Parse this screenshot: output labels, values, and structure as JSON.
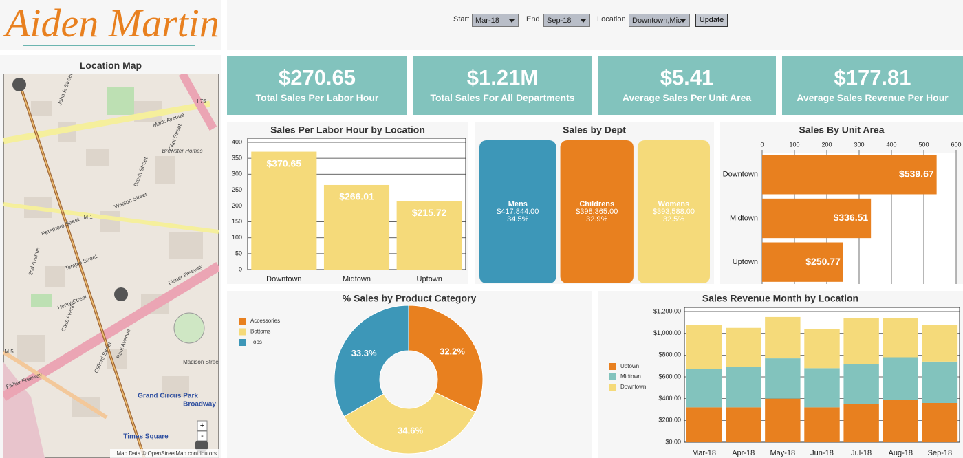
{
  "header": {
    "title": "Aiden Martin"
  },
  "filters": {
    "start_label": "Start",
    "start_value": "Mar-18",
    "end_label": "End",
    "end_value": "Sep-18",
    "location_label": "Location",
    "location_value": "Downtown,Mic",
    "button": "Update"
  },
  "kpis": [
    {
      "value": "$270.65",
      "label": "Total Sales Per Labor Hour"
    },
    {
      "value": "$1.21M",
      "label": "Total Sales For All Departments"
    },
    {
      "value": "$5.41",
      "label": "Average Sales Per Unit Area"
    },
    {
      "value": "$177.81",
      "label": "Average Sales Revenue Per Hour"
    }
  ],
  "map": {
    "title": "Location Map",
    "labels": [
      "Mack Avenue",
      "Fisher Freeway",
      "Grand Circus Park",
      "Times Square",
      "Broadway",
      "Peterboro Street",
      "Park Avenue",
      "Clifford Street",
      "Henry Street",
      "Cass Avenue",
      "2nd Avenue",
      "Brush Street",
      "Madison Street",
      "John R Street",
      "Brewster Homes",
      "I 75",
      "M 1",
      "M 5",
      "Fisher Freeway",
      "Elliot Street",
      "Watson Street",
      "Temple Street"
    ],
    "zoom_in": "+",
    "zoom_out": "-",
    "attribution": "Map Data © OpenStreetMap contributors"
  },
  "chart_data": [
    {
      "type": "bar",
      "title": "Sales Per Labor Hour by Location",
      "categories": [
        "Downtown",
        "Midtown",
        "Uptown"
      ],
      "values": [
        370.65,
        266.01,
        215.72
      ],
      "value_labels": [
        "$370.65",
        "$266.01",
        "$215.72"
      ],
      "color": "#f5da7a",
      "ylim": [
        0,
        400
      ],
      "yticks": [
        0,
        50,
        100,
        150,
        200,
        250,
        300,
        350,
        400
      ],
      "grid": true
    },
    {
      "type": "treemap",
      "title": "Sales by Dept",
      "categories": [
        "Mens",
        "Childrens",
        "Womens"
      ],
      "values": [
        417844,
        398365,
        393588
      ],
      "value_labels": [
        "$417,844.00",
        "$398,365.00",
        "$393,588.00"
      ],
      "percent_labels": [
        "34.5%",
        "32.9%",
        "32.5%"
      ],
      "colors": [
        "#3d97b8",
        "#e8801f",
        "#f5da7a"
      ]
    },
    {
      "type": "hbar",
      "title": "Sales By Unit Area",
      "categories": [
        "Downtown",
        "Midtown",
        "Uptown"
      ],
      "values": [
        539.67,
        336.51,
        250.77
      ],
      "value_labels": [
        "$539.67",
        "$336.51",
        "$250.77"
      ],
      "color": "#e8801f",
      "xlim": [
        0,
        600
      ],
      "xticks": [
        0,
        100,
        200,
        300,
        400,
        500,
        600
      ],
      "grid": true
    },
    {
      "type": "pie",
      "title": "% Sales by Product Category",
      "donut": true,
      "categories": [
        "Accessories",
        "Bottoms",
        "Tops"
      ],
      "values": [
        32.2,
        34.6,
        33.3
      ],
      "value_labels": [
        "32.2%",
        "34.6%",
        "33.3%"
      ],
      "colors": [
        "#e8801f",
        "#f5da7a",
        "#3d97b8"
      ],
      "legend": "left"
    },
    {
      "type": "stacked_bar",
      "title": "Sales Revenue Month by Location",
      "categories": [
        "Mar-18",
        "Apr-18",
        "May-18",
        "Jun-18",
        "Jul-18",
        "Aug-18",
        "Sep-18"
      ],
      "series": [
        {
          "name": "Uptown",
          "color": "#e8801f",
          "values": [
            320,
            320,
            400,
            320,
            350,
            390,
            360
          ]
        },
        {
          "name": "Midtown",
          "color": "#82c3bd",
          "values": [
            350,
            370,
            370,
            360,
            370,
            390,
            380
          ]
        },
        {
          "name": "Downtown",
          "color": "#f5da7a",
          "values": [
            410,
            360,
            380,
            360,
            420,
            360,
            340
          ]
        }
      ],
      "ylim": [
        0,
        1200
      ],
      "yticks": [
        {
          "value": 0,
          "label": "$0.00"
        },
        {
          "value": 200,
          "label": "$200.00"
        },
        {
          "value": 400,
          "label": "$400.00"
        },
        {
          "value": 600,
          "label": "$600.00"
        },
        {
          "value": 800,
          "label": "$800.00"
        },
        {
          "value": 1000,
          "label": "$1,000.00"
        },
        {
          "value": 1200,
          "label": "$1,200.00"
        }
      ],
      "grid": true,
      "legend": "left"
    }
  ]
}
